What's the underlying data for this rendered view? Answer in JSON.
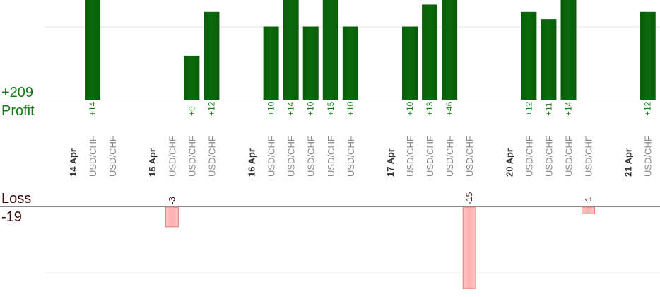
{
  "colors": {
    "profit": "#0b6a0b",
    "profit_label": "#1a7a1a",
    "loss_fill": "#ffb0b0",
    "loss_stroke": "#e07a7a",
    "loss_text": "#3a0a0a",
    "date_text": "#333333",
    "pair_text": "#8a8a8a",
    "grid": "#e6e6e6",
    "axis": "#888888"
  },
  "chart_data": {
    "type": "bar",
    "profit_total": "+209",
    "profit_label": "Profit",
    "loss_label": "Loss",
    "loss_total": "-19",
    "columns": [
      {
        "label": "14 Apr",
        "kind": "date"
      },
      {
        "label": "USD/CHF",
        "kind": "trade",
        "profit": 14,
        "text": "+14"
      },
      {
        "label": "USD/CHF",
        "kind": "trade"
      },
      {
        "label": "",
        "kind": "gap"
      },
      {
        "label": "15 Apr",
        "kind": "date"
      },
      {
        "label": "USD/CHF",
        "kind": "trade",
        "loss": -3,
        "text": "-3"
      },
      {
        "label": "USD/CHF",
        "kind": "trade",
        "profit": 6,
        "text": "+6"
      },
      {
        "label": "USD/CHF",
        "kind": "trade",
        "profit": 12,
        "text": "+12"
      },
      {
        "label": "",
        "kind": "gap"
      },
      {
        "label": "16 Apr",
        "kind": "date"
      },
      {
        "label": "USD/CHF",
        "kind": "trade",
        "profit": 10,
        "text": "+10"
      },
      {
        "label": "USD/CHF",
        "kind": "trade",
        "profit": 14,
        "text": "+14"
      },
      {
        "label": "USD/CHF",
        "kind": "trade",
        "profit": 10,
        "text": "+10"
      },
      {
        "label": "USD/CHF",
        "kind": "trade",
        "profit": 15,
        "text": "+15"
      },
      {
        "label": "USD/CHF",
        "kind": "trade",
        "profit": 10,
        "text": "+10"
      },
      {
        "label": "",
        "kind": "gap"
      },
      {
        "label": "17 Apr",
        "kind": "date"
      },
      {
        "label": "USD/CHF",
        "kind": "trade",
        "profit": 10,
        "text": "+10"
      },
      {
        "label": "USD/CHF",
        "kind": "trade",
        "profit": 13,
        "text": "+13"
      },
      {
        "label": "USD/CHF",
        "kind": "trade",
        "profit": 46,
        "text": "+46"
      },
      {
        "label": "USD/CHF",
        "kind": "trade",
        "loss": -15,
        "text": "-15"
      },
      {
        "label": "",
        "kind": "gap"
      },
      {
        "label": "20 Apr",
        "kind": "date"
      },
      {
        "label": "USD/CHF",
        "kind": "trade",
        "profit": 12,
        "text": "+12"
      },
      {
        "label": "USD/CHF",
        "kind": "trade",
        "profit": 11,
        "text": "+11"
      },
      {
        "label": "USD/CHF",
        "kind": "trade",
        "profit": 14,
        "text": "+14"
      },
      {
        "label": "USD/CHF",
        "kind": "trade",
        "loss": -1,
        "text": "-1"
      },
      {
        "label": "",
        "kind": "gap"
      },
      {
        "label": "21 Apr",
        "kind": "date"
      },
      {
        "label": "USD/CHF",
        "kind": "trade",
        "profit": 12,
        "text": "+12"
      }
    ],
    "profit_axis_max": 10,
    "loss_axis_max": 10,
    "grid": true
  }
}
